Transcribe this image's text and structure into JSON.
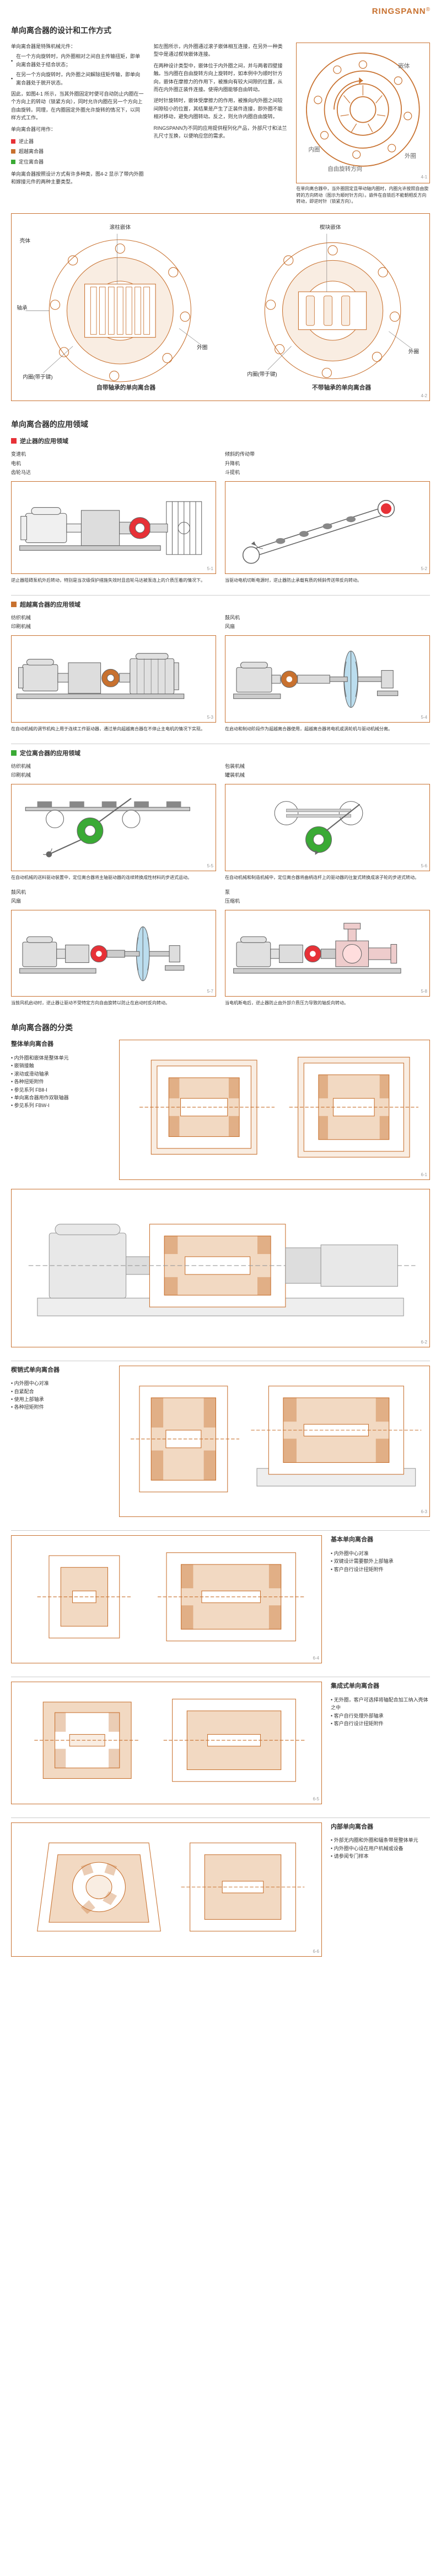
{
  "brand": {
    "name": "RINGSPANN",
    "color": "#c8712f",
    "reg": "®"
  },
  "page_title": "单向离合器的设计和工作方式",
  "intro": {
    "col1": {
      "p1": "单向离合器是特殊机械元件：",
      "b1": "在一个方向旋转时，内外圈相对之间自主传输扭矩，即单向离合器处于结合状态；",
      "b2": "在另一个方向旋转时，内外圈之间解除扭矩传输，即单向离合器处于脱开状态。",
      "p2": "因此，如图4-1 所示，当其外圈固定时便可自动防止内圈在一个方向上的转动（锁紧方向），同时允许内圈在另一个方向上自由旋转。同理，在内圈固定外圈允许旋转的情况下，以同样方式工作。",
      "p3": "单向离合器可用作：",
      "p4": "单向离合器按照设计方式有许多种类，图4-2 显示了带内外圈和嫁接元件的两种主要类型。",
      "leg1": "逆止器",
      "leg2": "超越离合器",
      "leg3": "定位离合器"
    },
    "col2": {
      "p1": "如左图所示，内外圈通过滚子嵌体相互连接，在另外一种类型中是通过楔块嵌体连接。",
      "p2": "在两种设计类型中，嵌体位于内外圈之间，并与两者四壁接触。当内圈在自由旋转方向上旋转时，如本例中为顺时针方向，嵌体在摩擦力的作用下，被推向有较大间隙的位置，从而在内外圈正装件连接。使得内圈能够自由转动。",
      "p3": "逆时针旋转时，嵌体受摩擦力的作用，被推向内外圈之间较间隙较小的位置，其结果是产生了正装件连接，即外圈不能相对移动，避免内圈转动。反之，则允许内圈自由旋转。",
      "p4": "RINGSPANN为不同的应用提供程列化产品，外部尺寸和法兰孔尺寸互换，以便响应您的需求。"
    },
    "col3": {
      "caption": "在单向离合器中，当外圈固定且带动轴内圈时，内圈允许按照自由旋转的方向转动（图示为顺时针方向）。嵌件在自锁后不能朝相反方向转动，即逆时针（锁紧方向）。"
    }
  },
  "colors": {
    "red": "#e73137",
    "green": "#3aaa35",
    "orange": "#c8712f",
    "gray": "#888"
  },
  "diag42": {
    "left": "自带轴承的单向离合器",
    "right": "不带轴承的单向离合器",
    "label1": "滚柱嵌体",
    "label2": "楔块嵌体",
    "inner": "内圈(带于键)",
    "inner2": "内圈(带于键)",
    "outer": "外圈",
    "bear": "轴承",
    "shell": "壳体"
  },
  "sec_app": "单向离合器的应用领域",
  "app_back": {
    "title": "逆止器的应用领域",
    "left": {
      "l1": "变速机",
      "l2": "电机",
      "l3": "齿轮马达"
    },
    "right": {
      "l1": "倾斜的传动带",
      "l2": "升降机",
      "l3": "斗提机"
    },
    "note_l": "逆止器阻碍泵机外后转动，特别是当次级保护措施失效时且齿轮马达被泵连上的介质压着的情况下。",
    "note_r": "当驱动电机切断电源时，逆止器防止承载有质的倾斜传送带反向转动。"
  },
  "app_over": {
    "title": "超越离合器的应用领域",
    "left": {
      "l1": "纺织机械",
      "l2": "印刷机械"
    },
    "right": {
      "l1": "鼓风机",
      "l2": "风扇"
    },
    "note_l": "在自动机械的调节机构上用于连续工作驱动器，通过单向超越离合器在不停止主电机的情况下实现。",
    "note_r": "在启动和制动阶段作为超越离合器使用，超越离合器将电机或涡轮机与驱动机械分离。"
  },
  "app_idx": {
    "title": "定位离合器的应用领域",
    "left": {
      "l1": "纺织机械",
      "l2": "印刷机械"
    },
    "right": {
      "l1": "包装机械",
      "l2": "罐装机械"
    },
    "left2": {
      "l1": "鼓风机",
      "l2": "风扇"
    },
    "right2": {
      "l1": "泵",
      "l2": "压缩机"
    },
    "note_l": "在自动机械的送料驱动装置中，定位离合器将主轴驱动器的连续转换成性材料的步进式运动。",
    "note_r": "在自动机械和制造机械中，定位离合器将曲柄连杆上的驱动器的往复式转换成滚子轮的步进式转动。",
    "note_l2": "当鼓风机启动时，逆止器让驱动不受特定方向自由旋转以防止在启动时反向转动。",
    "note_r2": "当电机断电后，逆止器防止由外部介质压力导致的轴反向转动。"
  },
  "sec_cat": "单向离合器的分类",
  "cat1": {
    "title": "整体单向离合器",
    "items": [
      "内外圈和嵌体是整体单元",
      "嵌销接触",
      "滚动或滑动轴承",
      "各种扭矩附件",
      "参见系列 FBⅡ-Ⅰ",
      "单向离合器用作双联轴器",
      "参见系列 FBW-Ⅰ"
    ]
  },
  "cat2": {
    "title": "楔销式单向离合器",
    "items": [
      "内外圈中心对准",
      "自紧配合",
      "使用上部轴承",
      "各种扭矩附件"
    ]
  },
  "cat3": {
    "title": "基本单向离合器",
    "items": [
      "内外圈中心对准",
      "双键设计需要额外上部轴承",
      "客户自行设计扭矩附件"
    ]
  },
  "cat4": {
    "title": "集成式单向离合器",
    "items": [
      "无外圈，客户可选择将轴配合加工纳入壳体之中",
      "客户自行处理外部轴承",
      "客户自行设计扭矩附件"
    ]
  },
  "cat5": {
    "title": "内部单向离合器",
    "items": [
      "外部无内圈和外圈和辐条带是整体单元",
      "内外圈中心设在用户机械或设备",
      "请参阅专门样本"
    ]
  }
}
